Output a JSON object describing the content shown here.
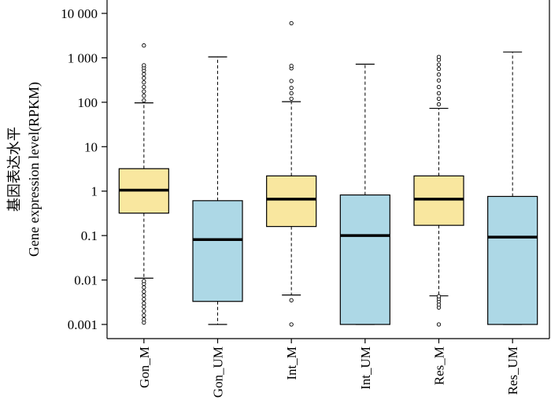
{
  "chart_data": {
    "type": "boxplot",
    "title": "",
    "xlabel": "",
    "ylabel_cn": "基因表达水平",
    "ylabel_en": "Gene expression level(RPKM)",
    "yscale": "log10",
    "ylim": [
      0.001,
      10000
    ],
    "yticks": [
      {
        "value": 0.001,
        "label": "0.001"
      },
      {
        "value": 0.01,
        "label": "0.01"
      },
      {
        "value": 0.1,
        "label": "0.1"
      },
      {
        "value": 1,
        "label": "1"
      },
      {
        "value": 10,
        "label": "10"
      },
      {
        "value": 100,
        "label": "100"
      },
      {
        "value": 1000,
        "label": "1 000"
      },
      {
        "value": 10000,
        "label": "10 000"
      }
    ],
    "categories": [
      "Gon_M",
      "Gon_UM",
      "Int_M",
      "Int_UM",
      "Res_M",
      "Res_UM"
    ],
    "boxes": [
      {
        "name": "Gon_M",
        "whisker_low": 0.011,
        "q1": 0.32,
        "median": 1.05,
        "q3": 3.2,
        "whisker_high": 97,
        "fill": "#f9e79f",
        "outliers": [
          0.0011,
          0.0013,
          0.0016,
          0.002,
          0.0025,
          0.003,
          0.0037,
          0.0045,
          0.0055,
          0.0068,
          0.0082,
          0.0095,
          110,
          140,
          175,
          220,
          280,
          350,
          430,
          520,
          600,
          680,
          1900
        ]
      },
      {
        "name": "Gon_UM",
        "whisker_low": 0.001,
        "q1": 0.0033,
        "median": 0.081,
        "q3": 0.61,
        "whisker_high": 1050,
        "fill": "#add8e6",
        "outliers": []
      },
      {
        "name": "Int_M",
        "whisker_low": 0.0046,
        "q1": 0.16,
        "median": 0.66,
        "q3": 2.2,
        "whisker_high": 103,
        "fill": "#f9e79f",
        "outliers": [
          0.001,
          0.0035,
          120,
          160,
          210,
          300,
          580,
          660,
          6000
        ]
      },
      {
        "name": "Int_UM",
        "whisker_low": 0.001,
        "q1": 0.001,
        "median": 0.1,
        "q3": 0.82,
        "whisker_high": 720,
        "fill": "#add8e6",
        "outliers": []
      },
      {
        "name": "Res_M",
        "whisker_low": 0.0044,
        "q1": 0.17,
        "median": 0.66,
        "q3": 2.2,
        "whisker_high": 73,
        "fill": "#f9e79f",
        "outliers": [
          0.001,
          0.0024,
          0.0028,
          0.0033,
          0.0038,
          0.0043,
          90,
          120,
          160,
          220,
          310,
          420,
          560,
          700,
          900,
          1050
        ]
      },
      {
        "name": "Res_UM",
        "whisker_low": 0.001,
        "q1": 0.001,
        "median": 0.092,
        "q3": 0.76,
        "whisker_high": 1350,
        "fill": "#add8e6",
        "outliers": []
      }
    ]
  }
}
